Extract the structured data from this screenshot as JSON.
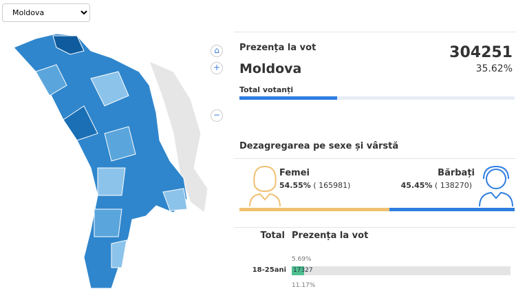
{
  "selector": {
    "value": "Moldova"
  },
  "summary": {
    "title": "Prezența la vot",
    "region": "Moldova",
    "total": "304251",
    "turnout": {
      "value": 35.62,
      "label": "35.62%"
    },
    "subtitle": "Total votanți"
  },
  "gender": {
    "title": "Dezagregarea pe sexe și vârstă",
    "female": {
      "name": "Femei",
      "share": {
        "value": 54.55,
        "label": "54.55%"
      },
      "count": "( 165981)"
    },
    "male": {
      "name": "Bărbați",
      "share": {
        "value": 45.45,
        "label": "45.45%"
      },
      "count": "( 138270)"
    }
  },
  "age": {
    "headers": [
      "Total",
      "Prezența la vot"
    ],
    "rows": [
      {
        "label": "18-25ani",
        "share": {
          "value": 5.69,
          "label": "5.69%"
        },
        "count": "17327"
      },
      {
        "label": null,
        "share": {
          "value": 11.17,
          "label": "11.17%"
        },
        "count": null
      }
    ]
  }
}
